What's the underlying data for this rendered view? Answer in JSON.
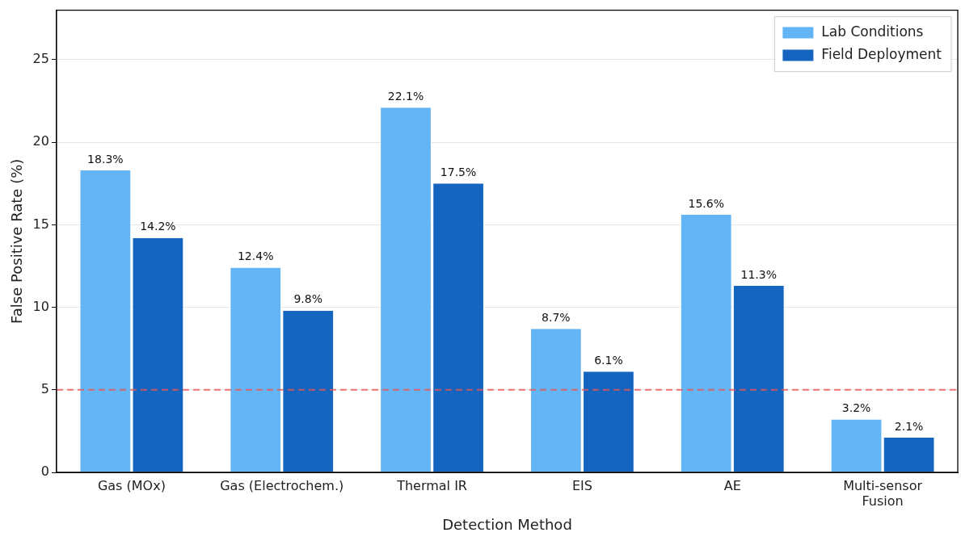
{
  "chart_data": {
    "type": "bar",
    "xlabel": "Detection Method",
    "ylabel": "False Positive Rate (%)",
    "categories": [
      "Gas (MOx)",
      "Gas (Electrochem.)",
      "Thermal IR",
      "EIS",
      "AE",
      "Multi-sensor\nFusion"
    ],
    "series": [
      {
        "name": "Lab Conditions",
        "color": "#64b5f6",
        "values": [
          18.3,
          12.4,
          22.1,
          8.7,
          15.6,
          3.2
        ],
        "value_labels": [
          "18.3%",
          "12.4%",
          "22.1%",
          "8.7%",
          "15.6%",
          "3.2%"
        ]
      },
      {
        "name": "Field Deployment",
        "color": "#1565c0",
        "values": [
          14.2,
          9.8,
          17.5,
          6.1,
          11.3,
          2.1
        ],
        "value_labels": [
          "14.2%",
          "9.8%",
          "17.5%",
          "6.1%",
          "11.3%",
          "2.1%"
        ]
      }
    ],
    "ylim": [
      0,
      28
    ],
    "yticks": [
      0,
      5,
      10,
      15,
      20,
      25
    ],
    "grid": "y",
    "legend": "top right",
    "ref_lines": [
      {
        "axis": "y",
        "value": 5,
        "color": "#ef5350",
        "line_style": "dashed"
      }
    ]
  }
}
